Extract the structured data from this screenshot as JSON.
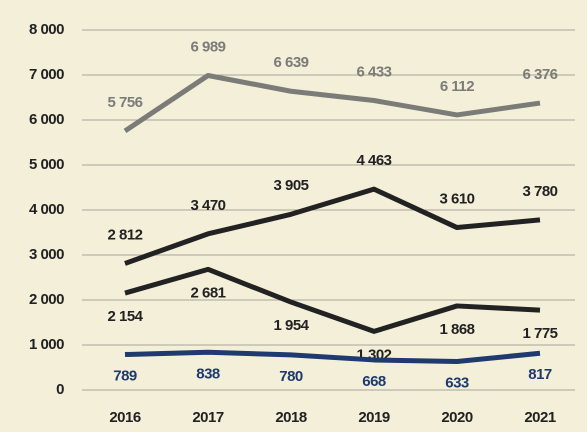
{
  "chart_data": {
    "type": "line",
    "categories": [
      "2016",
      "2017",
      "2018",
      "2019",
      "2020",
      "2021"
    ],
    "series": [
      {
        "color": "#7b7b78",
        "values": [
          5756,
          6989,
          6639,
          6433,
          6112,
          6376
        ],
        "value_labels": [
          "5 756",
          "6 989",
          "6 639",
          "6 433",
          "6 112",
          "6 376"
        ]
      },
      {
        "color": "#222222",
        "values": [
          2812,
          3470,
          3905,
          4463,
          3610,
          3780
        ],
        "value_labels": [
          "2 812",
          "3 470",
          "3 905",
          "4 463",
          "3 610",
          "3 780"
        ]
      },
      {
        "color": "#222222",
        "values": [
          2154,
          2681,
          1954,
          1302,
          1868,
          1775
        ],
        "value_labels": [
          "2 154",
          "2 681",
          "1 954",
          "1 302",
          "1 868",
          "1 775"
        ]
      },
      {
        "color": "#1f3a6e",
        "values": [
          789,
          838,
          780,
          668,
          633,
          817
        ],
        "value_labels": [
          "789",
          "838",
          "780",
          "668",
          "633",
          "817"
        ]
      }
    ],
    "ylim": [
      0,
      8000
    ],
    "yticks": [
      0,
      {
        "value": 1000,
        "label": "1 000"
      },
      {
        "value": 2000,
        "label": "2 000"
      },
      {
        "value": 3000,
        "label": "3 000"
      },
      {
        "value": 4000,
        "label": "4 000"
      },
      {
        "value": 5000,
        "label": "5 000"
      },
      {
        "value": 6000,
        "label": "6 000"
      },
      {
        "value": 7000,
        "label": "7 000"
      },
      {
        "value": 8000,
        "label": "8 000"
      }
    ],
    "grid": true
  }
}
